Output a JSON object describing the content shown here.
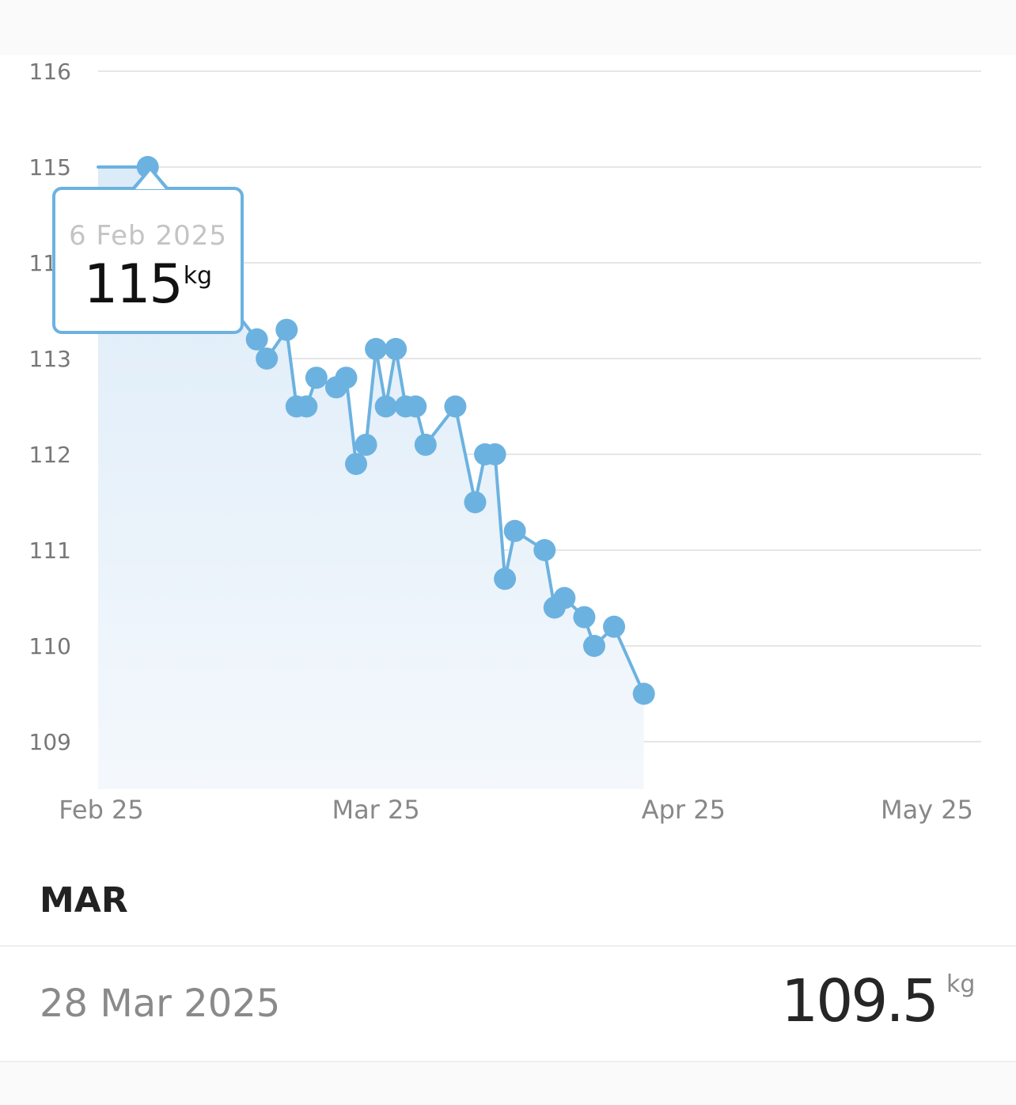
{
  "chart_data": {
    "type": "area",
    "title": "",
    "xlabel": "",
    "ylabel": "",
    "x_tick_labels": [
      "Feb 25",
      "Mar 25",
      "Apr 25",
      "May 25"
    ],
    "x_tick_dates": [
      "2025-02-01",
      "2025-03-01",
      "2025-04-01",
      "2025-05-01"
    ],
    "xlim": [
      "2025-02-01",
      "2025-05-01"
    ],
    "y_ticks": [
      116,
      115,
      114,
      113,
      112,
      111,
      110,
      109
    ],
    "ylim": [
      108.5,
      116
    ],
    "grid": true,
    "legend": "none",
    "line_color": "#6cb2e0",
    "fill_color": "#e4f0fa",
    "series": [
      {
        "points": [
          [
            "2025-02-01",
            115.0
          ],
          [
            "2025-02-06",
            115.0
          ],
          [
            "2025-02-09",
            114.5
          ],
          [
            "2025-02-14",
            113.6
          ],
          [
            "2025-02-17",
            113.2
          ],
          [
            "2025-02-18",
            113.0
          ],
          [
            "2025-02-20",
            113.3
          ],
          [
            "2025-02-21",
            112.5
          ],
          [
            "2025-02-22",
            112.5
          ],
          [
            "2025-02-23",
            112.8
          ],
          [
            "2025-02-25",
            112.7
          ],
          [
            "2025-02-26",
            112.8
          ],
          [
            "2025-02-27",
            111.9
          ],
          [
            "2025-02-28",
            112.1
          ],
          [
            "2025-03-01",
            113.1
          ],
          [
            "2025-03-02",
            112.5
          ],
          [
            "2025-03-03",
            113.1
          ],
          [
            "2025-03-04",
            112.5
          ],
          [
            "2025-03-05",
            112.5
          ],
          [
            "2025-03-06",
            112.1
          ],
          [
            "2025-03-09",
            112.5
          ],
          [
            "2025-03-11",
            111.5
          ],
          [
            "2025-03-12",
            112.0
          ],
          [
            "2025-03-13",
            112.0
          ],
          [
            "2025-03-14",
            110.7
          ],
          [
            "2025-03-15",
            111.2
          ],
          [
            "2025-03-18",
            111.0
          ],
          [
            "2025-03-19",
            110.4
          ],
          [
            "2025-03-20",
            110.5
          ],
          [
            "2025-03-22",
            110.3
          ],
          [
            "2025-03-23",
            110.0
          ],
          [
            "2025-03-25",
            110.2
          ],
          [
            "2025-03-28",
            109.5
          ]
        ]
      }
    ]
  },
  "tooltip": {
    "date": "6 Feb 2025",
    "value": "115",
    "unit": "kg"
  },
  "month_heading": "MAR",
  "entry": {
    "date": "28 Mar 2025",
    "value": "109.5",
    "unit": "kg"
  }
}
